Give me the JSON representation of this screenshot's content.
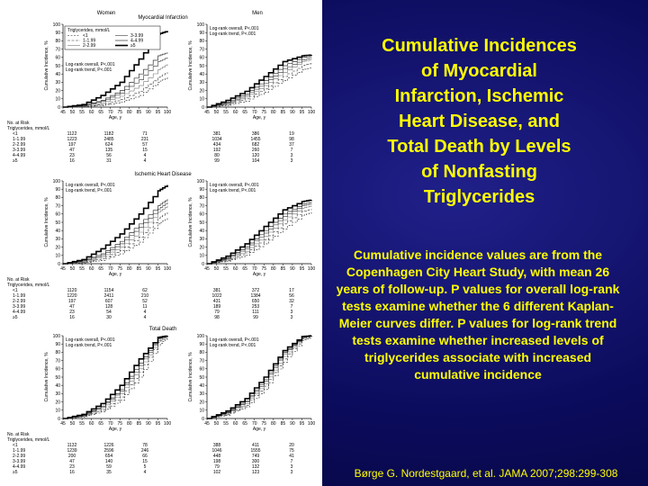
{
  "slide": {
    "title_lines": [
      "Cumulative Incidences",
      "of Myocardial",
      "Infarction, Ischemic",
      "Heart Disease, and",
      "Total Death by Levels",
      "of Nonfasting",
      "Triglycerides"
    ],
    "description": "Cumulative incidence values are from the Copenhagen City Heart Study, with mean 26 years of follow-up. P values for overall log-rank tests examine whether the 6 different Kaplan-Meier curves differ. P values for log-rank trend tests examine whether increased levels of triglycerides associate with increased cumulative incidence",
    "citation": "Børge G. Nordestgaard, et al. JAMA 2007;298:299-308",
    "title_color": "#ffff00"
  },
  "figure": {
    "column_headers": [
      "Women",
      "Men"
    ],
    "legend": {
      "title": "Triglycerides, mmol/L",
      "entries": [
        "<1",
        "1-1.99",
        "2-2.99",
        "3-3.99",
        "4-4.99",
        "≥5"
      ]
    },
    "y_axis_label": "Cumulative Incidence, %",
    "x_axis_label": "Age, y",
    "risk_header": [
      "No. at Risk",
      "Triglycerides, mmol/L"
    ],
    "risk_row_labels": [
      "<1",
      "1-1.99",
      "2-2.99",
      "3-3.99",
      "4-4.99",
      "≥5"
    ]
  },
  "chart_data": [
    {
      "type": "line",
      "panel": "Myocardial Infarction",
      "sex": "Women",
      "title": "Myocardial Infarction",
      "xlabel": "Age, y",
      "ylabel": "Cumulative Incidence, %",
      "xlim": [
        45,
        100
      ],
      "ylim": [
        0,
        100
      ],
      "x_ticks": [
        45,
        50,
        55,
        60,
        65,
        70,
        75,
        80,
        85,
        90,
        95,
        100
      ],
      "y_ticks": [
        0,
        10,
        20,
        30,
        40,
        50,
        60,
        70,
        80,
        90,
        100
      ],
      "stats": [
        "Log-rank overall, P<.001",
        "Log-rank trend, P<.001"
      ],
      "x": [
        45,
        55,
        65,
        75,
        85,
        95,
        100
      ],
      "series": [
        {
          "name": "<1",
          "values": [
            0,
            0.5,
            2,
            6,
            14,
            30,
            36
          ]
        },
        {
          "name": "1-1.99",
          "values": [
            0,
            0.8,
            3,
            9,
            19,
            36,
            42
          ]
        },
        {
          "name": "2-2.99",
          "values": [
            0,
            1.2,
            5,
            13,
            26,
            45,
            52
          ]
        },
        {
          "name": "3-3.99",
          "values": [
            0,
            1.5,
            7,
            17,
            33,
            55,
            60
          ]
        },
        {
          "name": "4-4.99",
          "values": [
            0,
            2,
            8,
            20,
            40,
            62,
            66
          ]
        },
        {
          "name": "≥5",
          "values": [
            0,
            3,
            14,
            30,
            58,
            88,
            92
          ]
        }
      ],
      "risk_columns": [
        [
          "1122",
          "1223",
          "197",
          "47",
          "23",
          "16"
        ],
        [
          "1182",
          "2485",
          "624",
          "135",
          "56",
          "31"
        ],
        [
          "71",
          "231",
          "57",
          "15",
          "4",
          "4"
        ]
      ]
    },
    {
      "type": "line",
      "panel": "Myocardial Infarction",
      "sex": "Men",
      "title": "Myocardial Infarction",
      "xlabel": "Age, y",
      "ylabel": "Cumulative Incidence, %",
      "xlim": [
        45,
        100
      ],
      "ylim": [
        0,
        100
      ],
      "x_ticks": [
        45,
        50,
        55,
        60,
        65,
        70,
        75,
        80,
        85,
        90,
        95,
        100
      ],
      "y_ticks": [
        0,
        10,
        20,
        30,
        40,
        50,
        60,
        70,
        80,
        90,
        100
      ],
      "stats": [
        "Log-rank overall, P<.001",
        "Log-rank trend, P<.001"
      ],
      "x": [
        45,
        55,
        65,
        75,
        85,
        95,
        100
      ],
      "series": [
        {
          "name": "<1",
          "values": [
            0,
            2,
            7,
            18,
            32,
            45,
            48
          ]
        },
        {
          "name": "1-1.99",
          "values": [
            0,
            3,
            10,
            22,
            37,
            50,
            53
          ]
        },
        {
          "name": "2-2.99",
          "values": [
            0,
            4,
            12,
            26,
            42,
            55,
            57
          ]
        },
        {
          "name": "3-3.99",
          "values": [
            0,
            5,
            14,
            29,
            46,
            57,
            59
          ]
        },
        {
          "name": "4-4.99",
          "values": [
            0,
            6,
            16,
            32,
            50,
            60,
            61
          ]
        },
        {
          "name": "≥5",
          "values": [
            0,
            8,
            19,
            37,
            55,
            62,
            63
          ]
        }
      ],
      "risk_columns": [
        [
          "381",
          "1034",
          "434",
          "192",
          "80",
          "99"
        ],
        [
          "386",
          "1455",
          "682",
          "260",
          "120",
          "104"
        ],
        [
          "19",
          "98",
          "37",
          "7",
          "3",
          "3"
        ]
      ]
    },
    {
      "type": "line",
      "panel": "Ischemic Heart Disease",
      "sex": "Women",
      "title": "Ischemic Heart Disease",
      "xlabel": "Age, y",
      "ylabel": "Cumulative Incidence, %",
      "xlim": [
        45,
        100
      ],
      "ylim": [
        0,
        100
      ],
      "x_ticks": [
        45,
        50,
        55,
        60,
        65,
        70,
        75,
        80,
        85,
        90,
        95,
        100
      ],
      "y_ticks": [
        0,
        10,
        20,
        30,
        40,
        50,
        60,
        70,
        80,
        90,
        100
      ],
      "stats": [
        "Log-rank overall, P<.001",
        "Log-rank trend, P<.001"
      ],
      "x": [
        45,
        55,
        65,
        75,
        85,
        95,
        100
      ],
      "series": [
        {
          "name": "<1",
          "values": [
            0,
            1,
            4,
            12,
            26,
            48,
            55
          ]
        },
        {
          "name": "1-1.99",
          "values": [
            0,
            1.5,
            6,
            16,
            32,
            55,
            62
          ]
        },
        {
          "name": "2-2.99",
          "values": [
            0,
            2,
            8,
            20,
            38,
            62,
            70
          ]
        },
        {
          "name": "3-3.99",
          "values": [
            0,
            3,
            10,
            24,
            44,
            66,
            74
          ]
        },
        {
          "name": "4-4.99",
          "values": [
            0,
            3.5,
            12,
            27,
            48,
            70,
            78
          ]
        },
        {
          "name": "≥5",
          "values": [
            0,
            5,
            18,
            36,
            60,
            88,
            95
          ]
        }
      ],
      "risk_columns": [
        [
          "1120",
          "1220",
          "197",
          "47",
          "23",
          "16"
        ],
        [
          "1154",
          "2411",
          "607",
          "128",
          "54",
          "30"
        ],
        [
          "62",
          "210",
          "52",
          "11",
          "4",
          "4"
        ]
      ]
    },
    {
      "type": "line",
      "panel": "Ischemic Heart Disease",
      "sex": "Men",
      "title": "Ischemic Heart Disease",
      "xlabel": "Age, y",
      "ylabel": "Cumulative Incidence, %",
      "xlim": [
        45,
        100
      ],
      "ylim": [
        0,
        100
      ],
      "x_ticks": [
        45,
        50,
        55,
        60,
        65,
        70,
        75,
        80,
        85,
        90,
        95,
        100
      ],
      "y_ticks": [
        0,
        10,
        20,
        30,
        40,
        50,
        60,
        70,
        80,
        90,
        100
      ],
      "stats": [
        "Log-rank overall, P<.001",
        "Log-rank trend, P<.001"
      ],
      "x": [
        45,
        55,
        65,
        75,
        85,
        95,
        100
      ],
      "series": [
        {
          "name": "<1",
          "values": [
            0,
            3,
            10,
            24,
            42,
            58,
            62
          ]
        },
        {
          "name": "1-1.99",
          "values": [
            0,
            4,
            13,
            29,
            48,
            63,
            66
          ]
        },
        {
          "name": "2-2.99",
          "values": [
            0,
            5,
            15,
            33,
            53,
            67,
            70
          ]
        },
        {
          "name": "3-3.99",
          "values": [
            0,
            6,
            18,
            37,
            57,
            70,
            72
          ]
        },
        {
          "name": "4-4.99",
          "values": [
            0,
            7,
            20,
            40,
            60,
            72,
            74
          ]
        },
        {
          "name": "≥5",
          "values": [
            0,
            9,
            24,
            45,
            65,
            75,
            77
          ]
        }
      ],
      "risk_columns": [
        [
          "381",
          "1022",
          "431",
          "189",
          "79",
          "98"
        ],
        [
          "372",
          "1384",
          "650",
          "253",
          "111",
          "99"
        ],
        [
          "17",
          "56",
          "32",
          "7",
          "3",
          "3"
        ]
      ]
    },
    {
      "type": "line",
      "panel": "Total Death",
      "sex": "Women",
      "title": "Total Death",
      "xlabel": "Age, y",
      "ylabel": "Cumulative Incidence, %",
      "xlim": [
        45,
        100
      ],
      "ylim": [
        0,
        100
      ],
      "x_ticks": [
        45,
        50,
        55,
        60,
        65,
        70,
        75,
        80,
        85,
        90,
        95,
        100
      ],
      "y_ticks": [
        0,
        10,
        20,
        30,
        40,
        50,
        60,
        70,
        80,
        90,
        100
      ],
      "stats": [
        "Log-rank overall, P<.001",
        "Log-rank trend, P<.001"
      ],
      "x": [
        45,
        55,
        65,
        75,
        85,
        95,
        100
      ],
      "series": [
        {
          "name": "<1",
          "values": [
            0,
            2,
            8,
            22,
            50,
            88,
            98
          ]
        },
        {
          "name": "1-1.99",
          "values": [
            0,
            2.5,
            10,
            26,
            56,
            92,
            99
          ]
        },
        {
          "name": "2-2.99",
          "values": [
            0,
            3,
            12,
            30,
            60,
            94,
            100
          ]
        },
        {
          "name": "3-3.99",
          "values": [
            0,
            3.5,
            14,
            33,
            64,
            96,
            100
          ]
        },
        {
          "name": "4-4.99",
          "values": [
            0,
            4,
            15,
            35,
            67,
            97,
            100
          ]
        },
        {
          "name": "≥5",
          "values": [
            0,
            5,
            18,
            40,
            72,
            98,
            100
          ]
        }
      ],
      "risk_columns": [
        [
          "1132",
          "1239",
          "200",
          "47",
          "23",
          "16"
        ],
        [
          "1226",
          "2596",
          "654",
          "140",
          "59",
          "35"
        ],
        [
          "78",
          "246",
          "66",
          "15",
          "5",
          "4"
        ]
      ]
    },
    {
      "type": "line",
      "panel": "Total Death",
      "sex": "Men",
      "title": "Total Death",
      "xlabel": "Age, y",
      "ylabel": "Cumulative Incidence, %",
      "xlim": [
        45,
        100
      ],
      "ylim": [
        0,
        100
      ],
      "x_ticks": [
        45,
        50,
        55,
        60,
        65,
        70,
        75,
        80,
        85,
        90,
        95,
        100
      ],
      "y_ticks": [
        0,
        10,
        20,
        30,
        40,
        50,
        60,
        70,
        80,
        90,
        100
      ],
      "stats": [
        "Log-rank overall, P<.001",
        "Log-rank trend, P<.001"
      ],
      "x": [
        45,
        55,
        65,
        75,
        85,
        95,
        100
      ],
      "series": [
        {
          "name": "<1",
          "values": [
            0,
            4,
            14,
            35,
            68,
            94,
            98
          ]
        },
        {
          "name": "1-1.99",
          "values": [
            0,
            5,
            16,
            39,
            72,
            96,
            99
          ]
        },
        {
          "name": "2-2.99",
          "values": [
            0,
            6,
            18,
            42,
            75,
            97,
            100
          ]
        },
        {
          "name": "3-3.99",
          "values": [
            0,
            7,
            20,
            45,
            78,
            98,
            100
          ]
        },
        {
          "name": "4-4.99",
          "values": [
            0,
            7.5,
            21,
            47,
            80,
            98,
            100
          ]
        },
        {
          "name": "≥5",
          "values": [
            0,
            9,
            24,
            50,
            82,
            99,
            100
          ]
        }
      ],
      "risk_columns": [
        [
          "388",
          "1046",
          "448",
          "198",
          "79",
          "102"
        ],
        [
          "411",
          "1555",
          "749",
          "300",
          "132",
          "123"
        ],
        [
          "20",
          "75",
          "41",
          "7",
          "3",
          "3"
        ]
      ]
    }
  ]
}
